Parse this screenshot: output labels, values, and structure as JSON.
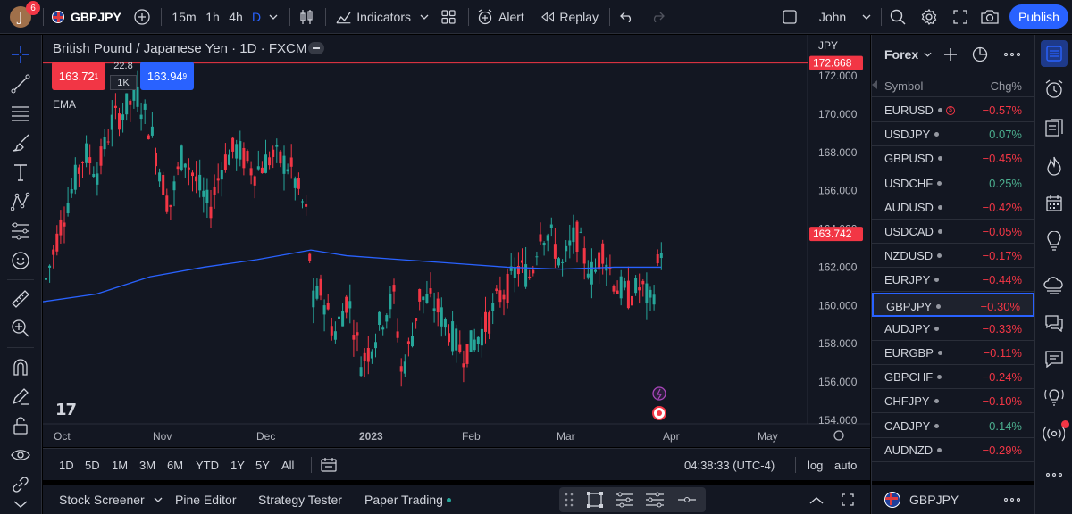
{
  "topbar": {
    "avatar_letter": "J",
    "notification_count": "6",
    "symbol": "GBPJPY",
    "intervals": [
      "15m",
      "1h",
      "4h",
      "D"
    ],
    "active_interval": "D",
    "indicators_label": "Indicators",
    "alert_label": "Alert",
    "replay_label": "Replay",
    "layout_name": "John",
    "publish_label": "Publish"
  },
  "chart": {
    "title": "British Pound / Japanese Yen · 1D · FXCM",
    "currency": "JPY",
    "sell_price": "163.72",
    "sell_sup": "1",
    "buy_price": "163.94",
    "buy_sup": "9",
    "spread": "22.8",
    "lot_size": "1K",
    "indicator_label": "EMA",
    "y_ticks": [
      "172.000",
      "170.000",
      "168.000",
      "166.000",
      "164.000",
      "162.000",
      "160.000",
      "158.000",
      "156.000",
      "154.000"
    ],
    "x_ticks": [
      "Oct",
      "Nov",
      "Dec",
      "2023",
      "Feb",
      "Mar",
      "Apr",
      "May"
    ],
    "high_line_price": "172.668",
    "last_price": "163.742",
    "colors": {
      "up": "#26a69a",
      "down": "#f23645",
      "ema": "#2962ff",
      "background": "#131722"
    }
  },
  "chart_data": {
    "type": "candlestick",
    "title": "British Pound / Japanese Yen · 1D · FXCM",
    "x": [
      "Oct",
      "Nov",
      "Dec",
      "2023",
      "Feb",
      "Mar",
      "Apr",
      "May"
    ],
    "ylim": [
      154,
      173
    ],
    "last_price": 163.742,
    "high_line": 172.668,
    "ema_value_end": 162.0,
    "approx_close_path": [
      {
        "date": "Oct",
        "value": 162.0
      },
      {
        "date": "Nov",
        "value": 169.5
      },
      {
        "date": "Dec",
        "value": 168.0
      },
      {
        "date": "2023",
        "value": 159.0
      },
      {
        "date": "2023",
        "value": 157.0
      },
      {
        "date": "Feb",
        "value": 160.5
      },
      {
        "date": "Mar",
        "value": 163.5
      },
      {
        "date": "Apr",
        "value": 163.7
      }
    ]
  },
  "rangebar": {
    "ranges": [
      "1D",
      "5D",
      "1M",
      "3M",
      "6M",
      "YTD",
      "1Y",
      "5Y",
      "All"
    ],
    "clock": "04:38:33 (UTC-4)",
    "log_label": "log",
    "auto_label": "auto"
  },
  "bottombar": {
    "tabs": [
      "Stock Screener",
      "Pine Editor",
      "Strategy Tester",
      "Paper Trading"
    ]
  },
  "watchlist": {
    "title": "Forex",
    "col_symbol": "Symbol",
    "col_change": "Chg%",
    "rows": [
      {
        "symbol": "EURUSD",
        "change": "−0.57%",
        "dir": "neg",
        "flag": true
      },
      {
        "symbol": "USDJPY",
        "change": "0.07%",
        "dir": "pos"
      },
      {
        "symbol": "GBPUSD",
        "change": "−0.45%",
        "dir": "neg"
      },
      {
        "symbol": "USDCHF",
        "change": "0.25%",
        "dir": "pos"
      },
      {
        "symbol": "AUDUSD",
        "change": "−0.42%",
        "dir": "neg"
      },
      {
        "symbol": "USDCAD",
        "change": "−0.05%",
        "dir": "neg"
      },
      {
        "symbol": "NZDUSD",
        "change": "−0.17%",
        "dir": "neg"
      },
      {
        "symbol": "EURJPY",
        "change": "−0.44%",
        "dir": "neg"
      },
      {
        "symbol": "GBPJPY",
        "change": "−0.30%",
        "dir": "neg",
        "selected": true
      },
      {
        "symbol": "AUDJPY",
        "change": "−0.33%",
        "dir": "neg"
      },
      {
        "symbol": "EURGBP",
        "change": "−0.11%",
        "dir": "neg"
      },
      {
        "symbol": "GBPCHF",
        "change": "−0.24%",
        "dir": "neg"
      },
      {
        "symbol": "CHFJPY",
        "change": "−0.10%",
        "dir": "neg"
      },
      {
        "symbol": "CADJPY",
        "change": "0.14%",
        "dir": "pos"
      },
      {
        "symbol": "AUDNZD",
        "change": "−0.29%",
        "dir": "neg"
      }
    ],
    "footer_symbol": "GBPJPY"
  }
}
